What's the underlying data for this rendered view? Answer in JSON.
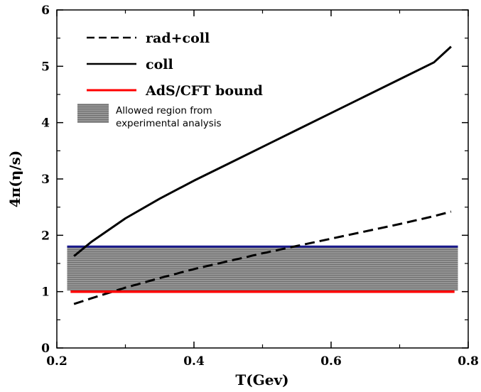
{
  "chart_data": {
    "type": "line",
    "title": "",
    "xlabel": "T(Gev)",
    "ylabel": "4π(η/s)",
    "xlim": [
      0.2,
      0.8
    ],
    "ylim": [
      0,
      6
    ],
    "x_ticks": [
      "0.2",
      "0.4",
      "0.6",
      "0.8"
    ],
    "y_ticks": [
      "0",
      "1",
      "2",
      "3",
      "4",
      "5",
      "6"
    ],
    "grid": false,
    "legend_position": "top-left",
    "series": [
      {
        "name": "rad+coll",
        "style": "dashed",
        "color": "#000000",
        "x": [
          0.225,
          0.25,
          0.3,
          0.35,
          0.4,
          0.45,
          0.5,
          0.55,
          0.6,
          0.65,
          0.7,
          0.75,
          0.775
        ],
        "y": [
          0.78,
          0.88,
          1.07,
          1.24,
          1.4,
          1.54,
          1.68,
          1.81,
          1.94,
          2.07,
          2.2,
          2.34,
          2.42
        ]
      },
      {
        "name": "coll",
        "style": "solid",
        "color": "#000000",
        "x": [
          0.225,
          0.25,
          0.3,
          0.35,
          0.4,
          0.45,
          0.5,
          0.55,
          0.6,
          0.65,
          0.7,
          0.75,
          0.775
        ],
        "y": [
          1.63,
          1.88,
          2.3,
          2.65,
          2.97,
          3.27,
          3.57,
          3.87,
          4.17,
          4.47,
          4.77,
          5.07,
          5.35
        ]
      },
      {
        "name": "AdS/CFT bound",
        "style": "solid",
        "color": "#ff0000",
        "x": [
          0.22,
          0.78
        ],
        "y": [
          1.0,
          1.0
        ]
      }
    ],
    "bands": [
      {
        "name": "Allowed region from experimental analysis",
        "x": [
          0.215,
          0.785
        ],
        "y_low": 1.02,
        "y_high": 1.8,
        "fill": "#8c8c8c",
        "upper_edge_color": "#1a1a8c"
      }
    ]
  },
  "legend": {
    "rad_coll": "rad+coll",
    "coll": "coll",
    "ads_cft": "AdS/CFT bound",
    "band_line1": "Allowed region from",
    "band_line2": "experimental analysis"
  }
}
